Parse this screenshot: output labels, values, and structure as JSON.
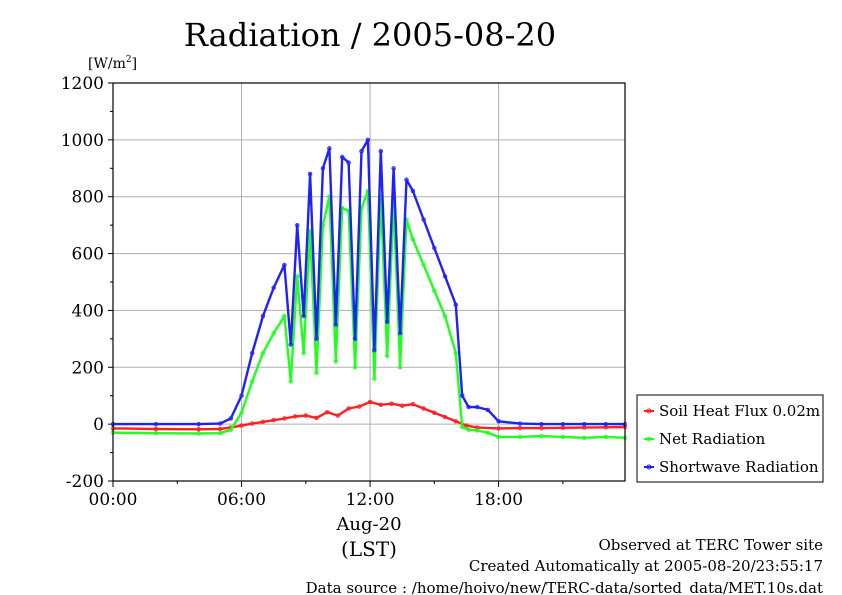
{
  "chart_data": {
    "type": "line",
    "title": "Radiation / 2005-08-20",
    "ylabel_unit": "[W/m",
    "ylabel_sup": "2",
    "ylabel_close": "]",
    "xlabel_date": "Aug-20",
    "xlabel_zone": "(LST)",
    "ylim": [
      -200,
      1200
    ],
    "xlim_hours": [
      0,
      23.9
    ],
    "y_ticks": [
      "-200",
      "0",
      "200",
      "400",
      "600",
      "800",
      "1000",
      "1200"
    ],
    "y_tick_values": [
      -200,
      0,
      200,
      400,
      600,
      800,
      1000,
      1200
    ],
    "x_ticks": [
      "00:00",
      "06:00",
      "12:00",
      "18:00"
    ],
    "x_tick_values": [
      0,
      6,
      12,
      18
    ],
    "grid": true,
    "legend_position": "right",
    "series": [
      {
        "name": "Soil Heat Flux 0.02m",
        "color": "#ff2020",
        "x": [
          0,
          2,
          4,
          5,
          5.5,
          6,
          6.5,
          7,
          7.5,
          8,
          8.5,
          9,
          9.5,
          10,
          10.5,
          11,
          11.5,
          12,
          12.5,
          13,
          13.5,
          14,
          14.5,
          15,
          15.5,
          16,
          16.5,
          17,
          18,
          19,
          20,
          21,
          22,
          23,
          23.9
        ],
        "y": [
          -15,
          -17,
          -18,
          -17,
          -12,
          -5,
          2,
          8,
          14,
          20,
          27,
          30,
          22,
          42,
          30,
          55,
          62,
          78,
          68,
          72,
          65,
          70,
          55,
          40,
          25,
          10,
          -5,
          -12,
          -15,
          -14,
          -14,
          -13,
          -12,
          -11,
          -10
        ]
      },
      {
        "name": "Net Radiation",
        "color": "#20ff20",
        "x": [
          0,
          2,
          4,
          5,
          5.5,
          6,
          6.5,
          7,
          7.5,
          8,
          8.3,
          8.6,
          8.9,
          9.2,
          9.5,
          9.8,
          10.1,
          10.4,
          10.7,
          11,
          11.3,
          11.6,
          11.9,
          12.2,
          12.5,
          12.8,
          13.1,
          13.4,
          13.7,
          14,
          14.5,
          15,
          15.5,
          16,
          16.3,
          16.6,
          17,
          17.5,
          18,
          19,
          20,
          21,
          22,
          23,
          23.9
        ],
        "y": [
          -30,
          -32,
          -33,
          -32,
          -20,
          40,
          150,
          250,
          320,
          380,
          150,
          520,
          250,
          680,
          180,
          700,
          800,
          220,
          760,
          750,
          200,
          760,
          820,
          160,
          800,
          240,
          780,
          200,
          720,
          650,
          560,
          470,
          380,
          250,
          -10,
          -20,
          -22,
          -30,
          -45,
          -45,
          -42,
          -45,
          -48,
          -45,
          -48
        ]
      },
      {
        "name": "Shortwave Radiation",
        "color": "#2020ff",
        "x": [
          0,
          2,
          4,
          5,
          5.5,
          6,
          6.5,
          7,
          7.5,
          8,
          8.3,
          8.6,
          8.9,
          9.2,
          9.5,
          9.8,
          10.1,
          10.4,
          10.7,
          11,
          11.3,
          11.6,
          11.9,
          12.2,
          12.5,
          12.8,
          13.1,
          13.4,
          13.7,
          14,
          14.5,
          15,
          15.5,
          16,
          16.3,
          16.6,
          17,
          17.5,
          18,
          19,
          20,
          21,
          22,
          23,
          23.9
        ],
        "y": [
          0,
          0,
          0,
          2,
          20,
          100,
          250,
          380,
          480,
          560,
          280,
          700,
          380,
          880,
          300,
          900,
          970,
          350,
          940,
          920,
          300,
          960,
          1000,
          260,
          960,
          360,
          900,
          320,
          860,
          820,
          720,
          620,
          520,
          420,
          100,
          60,
          60,
          50,
          10,
          2,
          0,
          0,
          0,
          0,
          0
        ]
      }
    ]
  },
  "footer": {
    "observed": "Observed at TERC Tower site",
    "created": "Created Automatically at 2005-08-20/23:55:17",
    "source": "Data source : /home/hoivo/new/TERC-data/sorted_data/MET.10s.dat"
  }
}
